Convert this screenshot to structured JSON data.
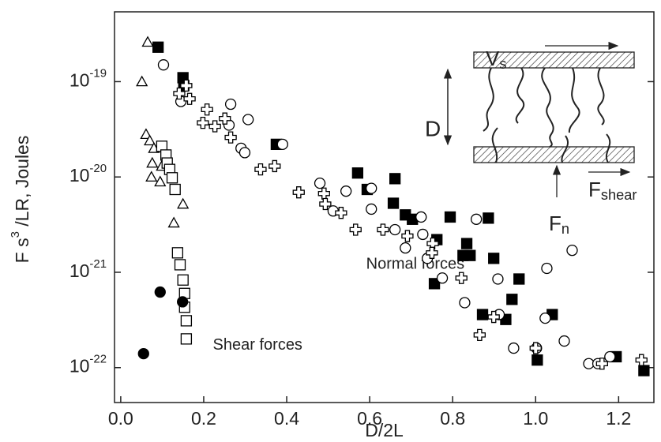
{
  "chart_data": {
    "type": "scatter",
    "log_y": true,
    "xlabel": "D/2L",
    "ylabel": "F s3 /LR,   Joules",
    "xlim": [
      -0.015,
      1.285
    ],
    "ylim": [
      4.3e-23,
      5.4e-19
    ],
    "xticks": [
      {
        "value": 0,
        "label": "0.0"
      },
      0.2,
      0.4,
      0.6,
      0.8,
      {
        "value": 1,
        "label": "1.0"
      },
      1.2
    ],
    "yticks": [
      {
        "value": 1e-22,
        "label": "10-22"
      },
      {
        "value": 1e-21,
        "label": "10-21"
      },
      {
        "value": 1e-20,
        "label": "10-20"
      },
      {
        "value": 1e-19,
        "label": "10-19"
      }
    ],
    "annotations": [
      {
        "text": "Normal forces",
        "x": 0.71,
        "y": 1.2e-21
      },
      {
        "text": "Shear forces",
        "x": 0.33,
        "y": 1.7e-22
      }
    ],
    "inset": {
      "velocity": "Vs",
      "gap": "D",
      "shear_force": "Fshear",
      "normal_force": "Fn"
    },
    "series": [
      {
        "marker": "triangle",
        "color": "#000",
        "filled": false,
        "x": [
          0.065,
          0.051,
          0.061,
          0.07,
          0.08,
          0.076,
          0.099,
          0.074,
          0.095,
          0.15,
          0.128
        ],
        "values": [
          2.6e-19,
          1e-19,
          2.8e-20,
          2.4e-20,
          2e-20,
          1.4e-20,
          1.3e-20,
          1e-20,
          8.9e-21,
          5.2e-21,
          3.3e-21
        ]
      },
      {
        "marker": "square",
        "color": "#000",
        "filled": false,
        "x": [
          0.099,
          0.109,
          0.112,
          0.118,
          0.124,
          0.131,
          0.137,
          0.143,
          0.15,
          0.154,
          0.154,
          0.158,
          0.158
        ],
        "values": [
          2.1e-20,
          1.7e-20,
          1.4e-20,
          1.2e-20,
          9.8e-21,
          7.4e-21,
          1.6e-21,
          1.2e-21,
          8.3e-22,
          6e-22,
          4.3e-22,
          3.1e-22,
          2e-22
        ]
      },
      {
        "marker": "circle",
        "color": "#000",
        "filled": true,
        "x": [
          0.095,
          0.149,
          0.055
        ],
        "values": [
          6.2e-22,
          4.9e-22,
          1.4e-22
        ]
      },
      {
        "marker": "square",
        "color": "#000",
        "filled": true,
        "x": [
          0.09,
          0.15,
          0.152,
          0.375,
          0.571,
          0.661,
          0.594,
          0.657,
          0.686,
          0.703,
          0.794,
          0.762,
          0.886,
          0.834,
          0.842,
          0.825,
          0.899,
          0.756,
          0.96,
          0.943,
          0.872,
          0.928,
          1.04,
          1.004,
          1.194,
          1.261
        ],
        "values": [
          2.3e-19,
          1.1e-19,
          9.1e-20,
          2.2e-20,
          1.1e-20,
          9.6e-21,
          7.4e-21,
          5.3e-21,
          4e-21,
          3.6e-21,
          3.8e-21,
          2.2e-21,
          3.7e-21,
          2e-21,
          1.5e-21,
          1.5e-21,
          1.4e-21,
          7.6e-22,
          8.5e-22,
          5.2e-22,
          3.6e-22,
          3.2e-22,
          3.6e-22,
          1.2e-22,
          1.3e-22,
          9.3e-23
        ]
      },
      {
        "marker": "circle",
        "color": "#000",
        "filled": false,
        "x": [
          0.103,
          0.145,
          0.265,
          0.307,
          0.261,
          0.29,
          0.299,
          0.39,
          0.48,
          0.543,
          0.604,
          0.512,
          0.604,
          0.661,
          0.724,
          0.728,
          0.686,
          0.739,
          0.857,
          0.775,
          0.829,
          0.909,
          0.912,
          1.027,
          1.088,
          1.023,
          1.069,
          1.002,
          0.947,
          1.128,
          1.15,
          1.179
        ],
        "values": [
          1.5e-19,
          6.2e-20,
          5.8e-20,
          4e-20,
          3.5e-20,
          2e-20,
          1.8e-20,
          2.2e-20,
          8.6e-21,
          7.1e-21,
          7.6e-21,
          4.4e-21,
          4.6e-21,
          2.8e-21,
          3.8e-21,
          2.5e-21,
          1.8e-21,
          1.4e-21,
          3.6e-21,
          8.7e-22,
          4.8e-22,
          8.5e-22,
          3.6e-22,
          1.1e-21,
          1.7e-21,
          3.3e-22,
          1.9e-22,
          1.6e-22,
          1.6e-22,
          1.1e-22,
          1.1e-22,
          1.3e-22
        ]
      },
      {
        "marker": "cross",
        "color": "#000",
        "filled": false,
        "x": [
          0.158,
          0.141,
          0.166,
          0.208,
          0.198,
          0.227,
          0.251,
          0.265,
          0.337,
          0.371,
          0.429,
          0.49,
          0.493,
          0.531,
          0.566,
          0.632,
          0.691,
          0.752,
          0.75,
          0.821,
          0.899,
          0.865,
          1.0,
          1.16,
          1.255
        ],
        "values": [
          9.1e-20,
          7.5e-20,
          6.6e-20,
          5.1e-20,
          3.7e-20,
          3.4e-20,
          4.1e-20,
          2.6e-20,
          1.2e-20,
          1.3e-20,
          6.9e-21,
          6.7e-21,
          5.2e-21,
          4.2e-21,
          2.8e-21,
          2.8e-21,
          2.4e-21,
          2e-21,
          1.6e-21,
          8.7e-22,
          3.4e-22,
          2.2e-22,
          1.6e-22,
          1.1e-22,
          1.2e-22
        ]
      }
    ]
  }
}
